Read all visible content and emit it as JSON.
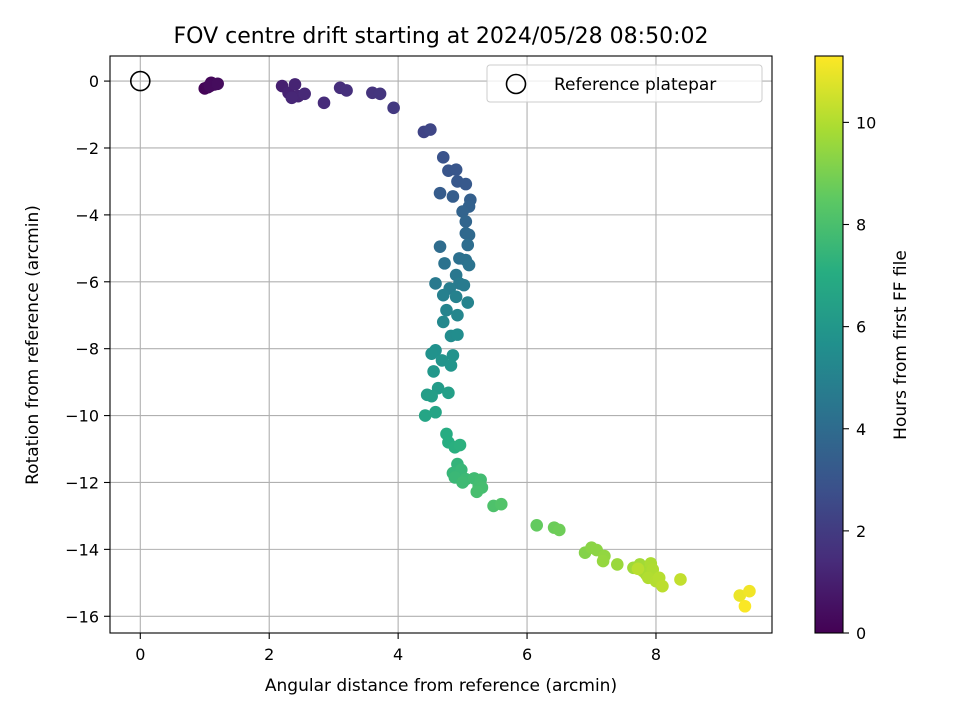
{
  "chart_data": {
    "type": "scatter",
    "title": "FOV centre drift starting at 2024/05/28 08:50:02",
    "xlabel": "Angular distance from reference (arcmin)",
    "ylabel": "Rotation from reference (arcmin)",
    "xlim": [
      -0.47,
      9.8
    ],
    "ylim": [
      -16.5,
      0.75
    ],
    "xticks": [
      0,
      2,
      4,
      6,
      8
    ],
    "yticks": [
      0,
      -2,
      -4,
      -6,
      -8,
      -10,
      -12,
      -14,
      -16
    ],
    "xtick_labels": [
      "0",
      "2",
      "4",
      "6",
      "8"
    ],
    "ytick_labels": [
      "0",
      "−2",
      "−4",
      "−6",
      "−8",
      "−10",
      "−12",
      "−14",
      "−16"
    ],
    "grid": true,
    "legend": {
      "location": "top-right",
      "entries": [
        {
          "label": "Reference platepar",
          "marker": "open-circle"
        }
      ]
    },
    "colorbar": {
      "label": "Hours from first FF file",
      "colormap": "viridis",
      "range": [
        0,
        11.3
      ],
      "ticks": [
        0,
        2,
        4,
        6,
        8,
        10
      ],
      "tick_labels": [
        "0",
        "2",
        "4",
        "6",
        "8",
        "10"
      ]
    },
    "reference_point": {
      "x": 0,
      "y": 0
    },
    "points": [
      {
        "x": 1.0,
        "y": -0.22,
        "c": 0.1
      },
      {
        "x": 1.05,
        "y": -0.18,
        "c": 0.15
      },
      {
        "x": 1.1,
        "y": -0.05,
        "c": 0.2
      },
      {
        "x": 1.15,
        "y": -0.1,
        "c": 0.25
      },
      {
        "x": 1.08,
        "y": -0.15,
        "c": 0.3
      },
      {
        "x": 1.2,
        "y": -0.08,
        "c": 0.35
      },
      {
        "x": 2.2,
        "y": -0.15,
        "c": 1.0
      },
      {
        "x": 2.3,
        "y": -0.35,
        "c": 1.1
      },
      {
        "x": 2.4,
        "y": -0.1,
        "c": 1.15
      },
      {
        "x": 2.45,
        "y": -0.45,
        "c": 1.2
      },
      {
        "x": 2.35,
        "y": -0.5,
        "c": 1.25
      },
      {
        "x": 2.55,
        "y": -0.38,
        "c": 1.3
      },
      {
        "x": 2.85,
        "y": -0.65,
        "c": 1.4
      },
      {
        "x": 3.1,
        "y": -0.2,
        "c": 1.5
      },
      {
        "x": 3.2,
        "y": -0.28,
        "c": 1.55
      },
      {
        "x": 3.6,
        "y": -0.35,
        "c": 1.7
      },
      {
        "x": 3.72,
        "y": -0.38,
        "c": 1.75
      },
      {
        "x": 3.93,
        "y": -0.8,
        "c": 1.9
      },
      {
        "x": 4.4,
        "y": -1.52,
        "c": 2.3
      },
      {
        "x": 4.5,
        "y": -1.45,
        "c": 2.4
      },
      {
        "x": 4.7,
        "y": -2.28,
        "c": 2.9
      },
      {
        "x": 4.78,
        "y": -2.68,
        "c": 3.0
      },
      {
        "x": 4.9,
        "y": -2.65,
        "c": 3.05
      },
      {
        "x": 4.92,
        "y": -3.0,
        "c": 3.15
      },
      {
        "x": 5.05,
        "y": -3.08,
        "c": 3.2
      },
      {
        "x": 4.65,
        "y": -3.35,
        "c": 3.3
      },
      {
        "x": 4.85,
        "y": -3.45,
        "c": 3.35
      },
      {
        "x": 5.12,
        "y": -3.55,
        "c": 3.45
      },
      {
        "x": 5.1,
        "y": -3.75,
        "c": 3.55
      },
      {
        "x": 5.0,
        "y": -3.9,
        "c": 3.6
      },
      {
        "x": 5.05,
        "y": -4.2,
        "c": 3.7
      },
      {
        "x": 5.05,
        "y": -4.55,
        "c": 3.85
      },
      {
        "x": 5.1,
        "y": -4.6,
        "c": 3.9
      },
      {
        "x": 4.65,
        "y": -4.95,
        "c": 4.0
      },
      {
        "x": 5.08,
        "y": -4.9,
        "c": 4.05
      },
      {
        "x": 4.95,
        "y": -5.3,
        "c": 4.2
      },
      {
        "x": 5.05,
        "y": -5.35,
        "c": 4.25
      },
      {
        "x": 4.72,
        "y": -5.45,
        "c": 4.3
      },
      {
        "x": 5.1,
        "y": -5.5,
        "c": 4.35
      },
      {
        "x": 4.9,
        "y": -5.8,
        "c": 4.5
      },
      {
        "x": 4.58,
        "y": -6.05,
        "c": 4.6
      },
      {
        "x": 4.95,
        "y": -6.05,
        "c": 4.65
      },
      {
        "x": 5.02,
        "y": -6.1,
        "c": 4.7
      },
      {
        "x": 4.8,
        "y": -6.2,
        "c": 4.8
      },
      {
        "x": 4.7,
        "y": -6.4,
        "c": 4.9
      },
      {
        "x": 4.9,
        "y": -6.45,
        "c": 4.95
      },
      {
        "x": 5.08,
        "y": -6.62,
        "c": 5.05
      },
      {
        "x": 4.75,
        "y": -6.85,
        "c": 5.1
      },
      {
        "x": 4.92,
        "y": -7.0,
        "c": 5.2
      },
      {
        "x": 4.7,
        "y": -7.2,
        "c": 5.3
      },
      {
        "x": 4.82,
        "y": -7.62,
        "c": 5.45
      },
      {
        "x": 4.92,
        "y": -7.58,
        "c": 5.5
      },
      {
        "x": 4.58,
        "y": -8.05,
        "c": 5.7
      },
      {
        "x": 4.52,
        "y": -8.15,
        "c": 5.75
      },
      {
        "x": 4.85,
        "y": -8.2,
        "c": 5.8
      },
      {
        "x": 4.68,
        "y": -8.35,
        "c": 5.85
      },
      {
        "x": 4.82,
        "y": -8.5,
        "c": 5.9
      },
      {
        "x": 4.55,
        "y": -8.68,
        "c": 6.0
      },
      {
        "x": 4.62,
        "y": -9.18,
        "c": 6.2
      },
      {
        "x": 4.45,
        "y": -9.38,
        "c": 6.3
      },
      {
        "x": 4.52,
        "y": -9.42,
        "c": 6.35
      },
      {
        "x": 4.78,
        "y": -9.32,
        "c": 6.4
      },
      {
        "x": 4.58,
        "y": -9.9,
        "c": 6.6
      },
      {
        "x": 4.42,
        "y": -10.0,
        "c": 6.65
      },
      {
        "x": 4.75,
        "y": -10.55,
        "c": 7.0
      },
      {
        "x": 4.78,
        "y": -10.8,
        "c": 7.05
      },
      {
        "x": 4.88,
        "y": -10.95,
        "c": 7.15
      },
      {
        "x": 4.96,
        "y": -10.88,
        "c": 7.2
      },
      {
        "x": 4.92,
        "y": -11.45,
        "c": 7.4
      },
      {
        "x": 4.85,
        "y": -11.72,
        "c": 7.5
      },
      {
        "x": 4.98,
        "y": -11.62,
        "c": 7.55
      },
      {
        "x": 4.88,
        "y": -11.85,
        "c": 7.6
      },
      {
        "x": 5.05,
        "y": -11.9,
        "c": 7.65
      },
      {
        "x": 5.0,
        "y": -12.0,
        "c": 7.7
      },
      {
        "x": 5.18,
        "y": -11.88,
        "c": 7.75
      },
      {
        "x": 5.28,
        "y": -11.92,
        "c": 7.8
      },
      {
        "x": 5.25,
        "y": -12.1,
        "c": 7.85
      },
      {
        "x": 5.3,
        "y": -12.15,
        "c": 7.9
      },
      {
        "x": 5.22,
        "y": -12.28,
        "c": 7.95
      },
      {
        "x": 5.48,
        "y": -12.7,
        "c": 8.1
      },
      {
        "x": 5.6,
        "y": -12.65,
        "c": 8.2
      },
      {
        "x": 6.15,
        "y": -13.28,
        "c": 8.6
      },
      {
        "x": 6.42,
        "y": -13.35,
        "c": 8.75
      },
      {
        "x": 6.5,
        "y": -13.42,
        "c": 8.8
      },
      {
        "x": 6.9,
        "y": -14.1,
        "c": 9.2
      },
      {
        "x": 7.0,
        "y": -13.95,
        "c": 9.3
      },
      {
        "x": 7.08,
        "y": -14.02,
        "c": 9.35
      },
      {
        "x": 7.2,
        "y": -14.2,
        "c": 9.45
      },
      {
        "x": 7.18,
        "y": -14.35,
        "c": 9.5
      },
      {
        "x": 7.4,
        "y": -14.45,
        "c": 9.6
      },
      {
        "x": 7.65,
        "y": -14.55,
        "c": 9.7
      },
      {
        "x": 7.75,
        "y": -14.45,
        "c": 9.75
      },
      {
        "x": 7.8,
        "y": -14.65,
        "c": 9.8
      },
      {
        "x": 7.85,
        "y": -14.75,
        "c": 9.85
      },
      {
        "x": 7.92,
        "y": -14.42,
        "c": 9.9
      },
      {
        "x": 7.95,
        "y": -14.6,
        "c": 9.95
      },
      {
        "x": 7.88,
        "y": -14.85,
        "c": 10.0
      },
      {
        "x": 8.0,
        "y": -14.95,
        "c": 10.05
      },
      {
        "x": 8.05,
        "y": -14.85,
        "c": 10.1
      },
      {
        "x": 7.72,
        "y": -14.58,
        "c": 10.15
      },
      {
        "x": 8.1,
        "y": -15.1,
        "c": 10.2
      },
      {
        "x": 8.38,
        "y": -14.9,
        "c": 10.3
      },
      {
        "x": 9.3,
        "y": -15.38,
        "c": 11.0
      },
      {
        "x": 9.45,
        "y": -15.25,
        "c": 11.1
      },
      {
        "x": 9.38,
        "y": -15.7,
        "c": 11.25
      }
    ]
  }
}
